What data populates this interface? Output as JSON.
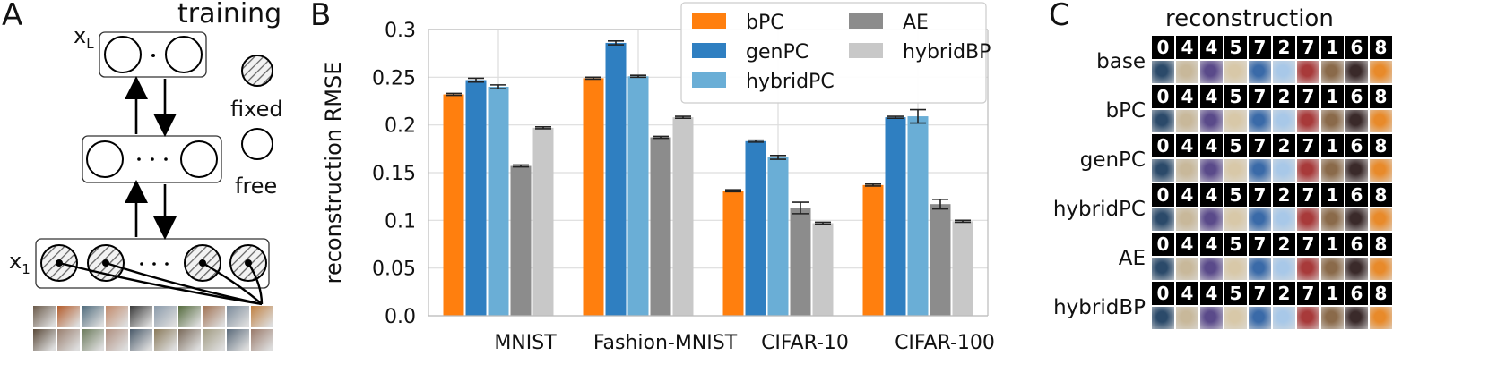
{
  "panels": {
    "a": {
      "letter": "A",
      "title": "training",
      "layer_top_label": "x",
      "layer_top_sub": "L",
      "layer_bottom_label": "x",
      "layer_bottom_sub": "1",
      "legend_fixed": "fixed",
      "legend_free": "free"
    },
    "b": {
      "letter": "B"
    },
    "c": {
      "letter": "C",
      "title": "reconstruction",
      "row_labels": [
        "base",
        "bPC",
        "genPC",
        "hybridPC",
        "AE",
        "hybridBP"
      ],
      "digits": [
        "0",
        "4",
        "4",
        "5",
        "7",
        "2",
        "7",
        "1",
        "6",
        "8"
      ]
    }
  },
  "chart_data": {
    "type": "bar",
    "categories": [
      "MNIST",
      "Fashion-MNIST",
      "CIFAR-10",
      "CIFAR-100"
    ],
    "ylabel": "reconstruction RMSE",
    "xlabel": "",
    "ylim": [
      0,
      0.3
    ],
    "yticks": [
      "0.0",
      "0.05",
      "0.1",
      "0.15",
      "0.2",
      "0.25",
      "0.3"
    ],
    "legend_position": "top-right",
    "grid": true,
    "series": [
      {
        "name": "bPC",
        "color": "#ff7f0e",
        "values": [
          0.232,
          0.249,
          0.131,
          0.137
        ],
        "errors": [
          0.001,
          0.001,
          0.001,
          0.001
        ]
      },
      {
        "name": "genPC",
        "color": "#2f7fc1",
        "values": [
          0.247,
          0.286,
          0.183,
          0.208
        ],
        "errors": [
          0.002,
          0.002,
          0.001,
          0.001
        ]
      },
      {
        "name": "hybridPC",
        "color": "#6aaed6",
        "values": [
          0.24,
          0.251,
          0.166,
          0.209
        ],
        "errors": [
          0.002,
          0.001,
          0.002,
          0.007
        ]
      },
      {
        "name": "AE",
        "color": "#8c8c8c",
        "values": [
          0.157,
          0.187,
          0.113,
          0.117
        ],
        "errors": [
          0.001,
          0.001,
          0.006,
          0.005
        ]
      },
      {
        "name": "hybridBP",
        "color": "#c8c8c8",
        "values": [
          0.197,
          0.208,
          0.097,
          0.099
        ],
        "errors": [
          0.001,
          0.001,
          0.001,
          0.001
        ]
      }
    ]
  }
}
